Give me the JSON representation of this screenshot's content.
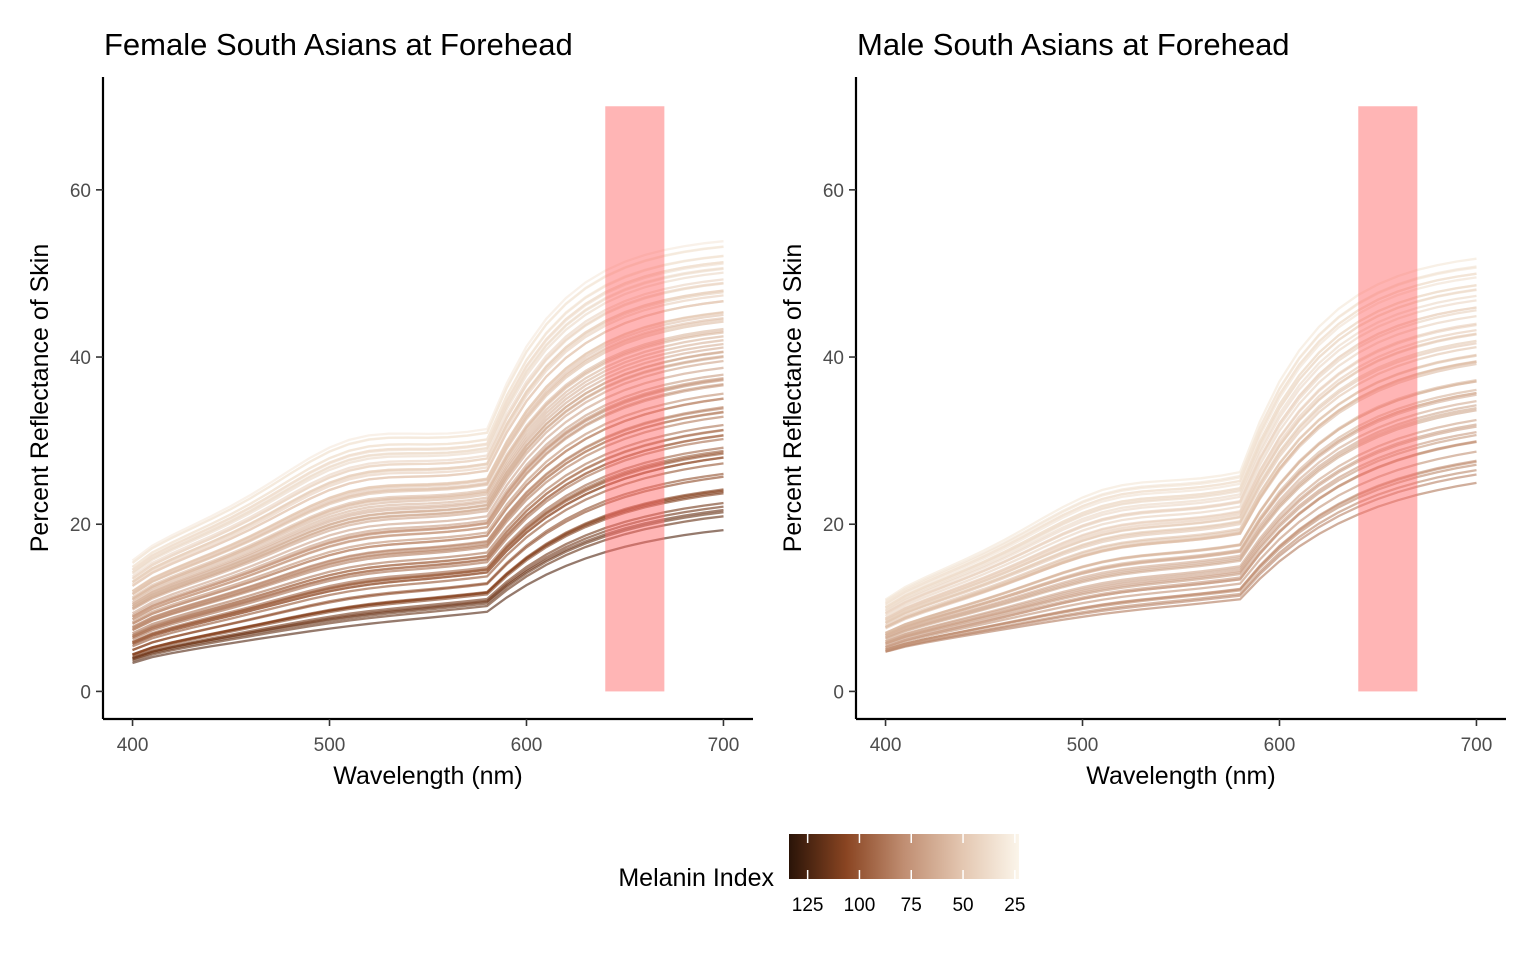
{
  "legend": {
    "title": "Melanin Index",
    "domain": [
      23,
      134
    ],
    "ticks": [
      125,
      100,
      75,
      50,
      25
    ],
    "colors": [
      "#2a1408",
      "#8a4522",
      "#c08e72",
      "#e3c6b0",
      "#fbf5ea"
    ]
  },
  "highlight": {
    "x_start": 640,
    "x_end": 670,
    "y_start": 0,
    "y_end": 70,
    "color": "#ff6b6b"
  },
  "chart_data": [
    {
      "type": "line",
      "title": "Female South Asians at Forehead",
      "xlabel": "Wavelength (nm)",
      "ylabel": "Percent Reflectance of Skin",
      "xlim": [
        385,
        715
      ],
      "ylim": [
        -3.3,
        73.5
      ],
      "xticks": [
        400,
        500,
        600,
        700
      ],
      "yticks": [
        0,
        20,
        40,
        60
      ],
      "grid": false,
      "x": [
        400,
        410,
        420,
        430,
        440,
        450,
        460,
        470,
        480,
        490,
        500,
        510,
        520,
        530,
        540,
        550,
        560,
        570,
        580,
        590,
        600,
        610,
        620,
        630,
        640,
        650,
        660,
        670,
        680,
        690,
        700
      ],
      "n_lines": 78,
      "line_ranges": {
        "400nm": [
          3.4,
          15.6
        ],
        "580nm": [
          9.5,
          31.0
        ],
        "700nm": [
          19.3,
          53.8
        ]
      },
      "lowest_line": {
        "x": [
          400,
          500,
          580,
          620,
          700
        ],
        "y": [
          3.4,
          6.5,
          9.5,
          14.5,
          19.3
        ]
      },
      "highest_line": {
        "x": [
          400,
          450,
          510,
          580,
          620,
          700
        ],
        "y": [
          15.6,
          24.5,
          30.0,
          31.0,
          45.5,
          53.8
        ]
      },
      "melanin_range": [
        30,
        122
      ]
    },
    {
      "type": "line",
      "title": "Male South Asians at Forehead",
      "xlabel": "Wavelength (nm)",
      "ylabel": "Percent Reflectance of Skin",
      "xlim": [
        385,
        715
      ],
      "ylim": [
        -3.3,
        73.5
      ],
      "xticks": [
        400,
        500,
        600,
        700
      ],
      "yticks": [
        0,
        20,
        40,
        60
      ],
      "grid": false,
      "x": [
        400,
        410,
        420,
        430,
        440,
        450,
        460,
        470,
        480,
        490,
        500,
        510,
        520,
        530,
        540,
        550,
        560,
        570,
        580,
        590,
        600,
        610,
        620,
        630,
        640,
        650,
        660,
        670,
        680,
        690,
        700
      ],
      "n_lines": 56,
      "line_ranges": {
        "400nm": [
          4.6,
          11.0
        ],
        "580nm": [
          10.8,
          26.0
        ],
        "700nm": [
          24.7,
          51.8
        ]
      },
      "lowest_line": {
        "x": [
          400,
          500,
          580,
          620,
          700
        ],
        "y": [
          4.8,
          8.5,
          10.8,
          17.0,
          24.7
        ]
      },
      "highest_line": {
        "x": [
          400,
          450,
          510,
          580,
          620,
          700
        ],
        "y": [
          11.0,
          17.0,
          24.0,
          26.0,
          42.0,
          51.8
        ]
      },
      "melanin_range": [
        32,
        85
      ]
    }
  ]
}
